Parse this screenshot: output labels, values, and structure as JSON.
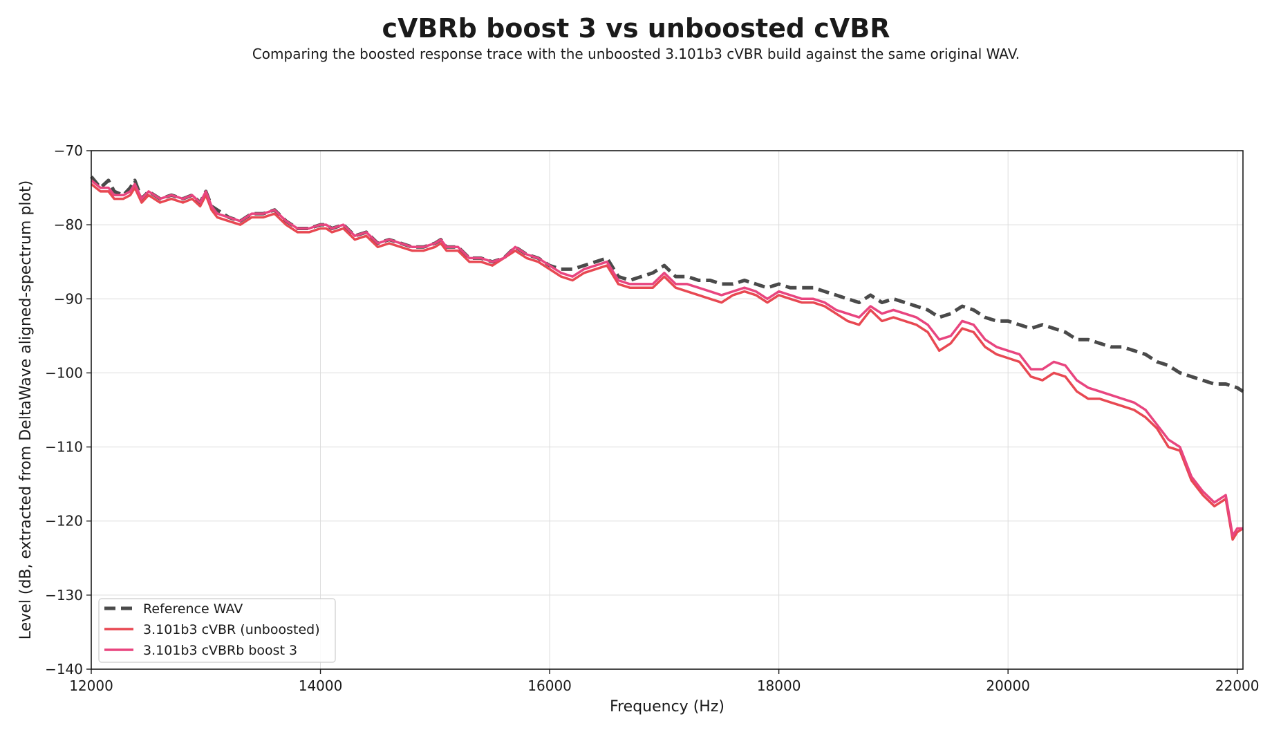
{
  "chart_data": {
    "type": "line",
    "title": "cVBRb boost 3 vs unboosted cVBR",
    "subtitle": "Comparing the boosted response trace with the unboosted 3.101b3 cVBR build against the same original WAV.",
    "xlabel": "Frequency (Hz)",
    "ylabel": "Level (dB, extracted from DeltaWave aligned-spectrum plot)",
    "xlim": [
      12000,
      22050
    ],
    "ylim": [
      -140,
      -70
    ],
    "x_ticks": [
      12000,
      14000,
      16000,
      18000,
      20000,
      22000
    ],
    "y_ticks": [
      -70,
      -80,
      -90,
      -100,
      -110,
      -120,
      -130,
      -140
    ],
    "x_tick_labels": [
      "12000",
      "14000",
      "16000",
      "18000",
      "20000",
      "22000"
    ],
    "y_tick_labels": [
      "−70",
      "−80",
      "−90",
      "−100",
      "−110",
      "−120",
      "−130",
      "−140"
    ],
    "grid": true,
    "legend_position": "lower-left",
    "series": [
      {
        "name": "Reference WAV",
        "color": "#4a4a4a",
        "style": "dashed",
        "x": [
          12000,
          12080,
          12150,
          12200,
          12280,
          12340,
          12380,
          12440,
          12500,
          12600,
          12700,
          12800,
          12880,
          12950,
          13000,
          13050,
          13100,
          13200,
          13300,
          13400,
          13500,
          13600,
          13700,
          13800,
          13900,
          14000,
          14050,
          14100,
          14200,
          14300,
          14400,
          14500,
          14600,
          14700,
          14800,
          14900,
          15000,
          15050,
          15100,
          15200,
          15300,
          15400,
          15500,
          15600,
          15700,
          15800,
          15900,
          16000,
          16100,
          16200,
          16300,
          16400,
          16500,
          16600,
          16700,
          16800,
          16900,
          17000,
          17100,
          17200,
          17300,
          17400,
          17500,
          17600,
          17700,
          17800,
          17900,
          18000,
          18100,
          18200,
          18300,
          18400,
          18500,
          18600,
          18700,
          18800,
          18900,
          19000,
          19100,
          19200,
          19300,
          19400,
          19500,
          19600,
          19700,
          19800,
          19900,
          20000,
          20100,
          20200,
          20300,
          20400,
          20500,
          20600,
          20700,
          20800,
          20900,
          21000,
          21100,
          21200,
          21300,
          21400,
          21500,
          21600,
          21700,
          21800,
          21900,
          22000,
          22050
        ],
        "values": [
          -73.5,
          -75.0,
          -74.0,
          -75.5,
          -76.0,
          -75.0,
          -74.0,
          -76.5,
          -75.5,
          -76.5,
          -76.0,
          -76.5,
          -76.0,
          -77.0,
          -75.5,
          -77.5,
          -78.0,
          -79.0,
          -79.5,
          -78.5,
          -78.5,
          -78.0,
          -79.5,
          -80.5,
          -80.5,
          -80.0,
          -80.0,
          -80.5,
          -80.0,
          -81.5,
          -81.0,
          -82.5,
          -82.0,
          -82.5,
          -83.0,
          -83.0,
          -82.5,
          -82.0,
          -83.0,
          -83.0,
          -84.5,
          -84.5,
          -85.0,
          -84.5,
          -83.0,
          -84.0,
          -84.5,
          -85.5,
          -86.0,
          -86.0,
          -85.5,
          -85.0,
          -84.5,
          -87.0,
          -87.5,
          -87.0,
          -86.5,
          -85.5,
          -87.0,
          -87.0,
          -87.5,
          -87.5,
          -88.0,
          -88.0,
          -87.5,
          -88.0,
          -88.5,
          -88.0,
          -88.5,
          -88.5,
          -88.5,
          -89.0,
          -89.5,
          -90.0,
          -90.5,
          -89.5,
          -90.5,
          -90.0,
          -90.5,
          -91.0,
          -91.5,
          -92.5,
          -92.0,
          -91.0,
          -91.5,
          -92.5,
          -93.0,
          -93.0,
          -93.5,
          -94.0,
          -93.5,
          -94.0,
          -94.5,
          -95.5,
          -95.5,
          -96.0,
          -96.5,
          -96.5,
          -97.0,
          -97.5,
          -98.5,
          -99.0,
          -100.0,
          -100.5,
          -101.0,
          -101.5,
          -101.5,
          -102.0,
          -102.5
        ]
      },
      {
        "name": "3.101b3 cVBR (unboosted)",
        "color": "#e84852",
        "style": "solid",
        "x": [
          12000,
          12080,
          12150,
          12200,
          12280,
          12340,
          12380,
          12440,
          12500,
          12600,
          12700,
          12800,
          12880,
          12950,
          13000,
          13050,
          13100,
          13200,
          13300,
          13400,
          13500,
          13600,
          13700,
          13800,
          13900,
          14000,
          14050,
          14100,
          14200,
          14300,
          14400,
          14500,
          14600,
          14700,
          14800,
          14900,
          15000,
          15050,
          15100,
          15200,
          15300,
          15400,
          15500,
          15600,
          15700,
          15800,
          15900,
          16000,
          16100,
          16200,
          16300,
          16400,
          16500,
          16600,
          16700,
          16800,
          16900,
          17000,
          17100,
          17200,
          17300,
          17400,
          17500,
          17600,
          17700,
          17800,
          17900,
          18000,
          18100,
          18200,
          18300,
          18400,
          18500,
          18600,
          18700,
          18800,
          18900,
          19000,
          19100,
          19200,
          19300,
          19400,
          19500,
          19600,
          19700,
          19800,
          19900,
          20000,
          20100,
          20200,
          20300,
          20400,
          20500,
          20600,
          20700,
          20800,
          20900,
          21000,
          21100,
          21200,
          21300,
          21400,
          21500,
          21600,
          21700,
          21800,
          21900,
          21960,
          22000,
          22050
        ],
        "values": [
          -74.5,
          -75.5,
          -75.5,
          -76.5,
          -76.5,
          -76.0,
          -75.0,
          -77.0,
          -76.0,
          -77.0,
          -76.5,
          -77.0,
          -76.5,
          -77.5,
          -76.0,
          -78.0,
          -79.0,
          -79.5,
          -80.0,
          -79.0,
          -79.0,
          -78.5,
          -80.0,
          -81.0,
          -81.0,
          -80.5,
          -80.5,
          -81.0,
          -80.5,
          -82.0,
          -81.5,
          -83.0,
          -82.5,
          -83.0,
          -83.5,
          -83.5,
          -83.0,
          -82.5,
          -83.5,
          -83.5,
          -85.0,
          -85.0,
          -85.5,
          -84.5,
          -83.5,
          -84.5,
          -85.0,
          -86.0,
          -87.0,
          -87.5,
          -86.5,
          -86.0,
          -85.5,
          -88.0,
          -88.5,
          -88.5,
          -88.5,
          -87.0,
          -88.5,
          -89.0,
          -89.5,
          -90.0,
          -90.5,
          -89.5,
          -89.0,
          -89.5,
          -90.5,
          -89.5,
          -90.0,
          -90.5,
          -90.5,
          -91.0,
          -92.0,
          -93.0,
          -93.5,
          -91.5,
          -93.0,
          -92.5,
          -93.0,
          -93.5,
          -94.5,
          -97.0,
          -96.0,
          -94.0,
          -94.5,
          -96.5,
          -97.5,
          -98.0,
          -98.5,
          -100.5,
          -101.0,
          -100.0,
          -100.5,
          -102.5,
          -103.5,
          -103.5,
          -104.0,
          -104.5,
          -105.0,
          -106.0,
          -107.5,
          -110.0,
          -110.5,
          -114.5,
          -116.5,
          -118.0,
          -117.0,
          -122.5,
          -121.5,
          -121.0
        ]
      },
      {
        "name": "3.101b3 cVBRb boost 3",
        "color": "#e8457f",
        "style": "solid",
        "x": [
          12000,
          12080,
          12150,
          12200,
          12280,
          12340,
          12380,
          12440,
          12500,
          12600,
          12700,
          12800,
          12880,
          12950,
          13000,
          13050,
          13100,
          13200,
          13300,
          13400,
          13500,
          13600,
          13700,
          13800,
          13900,
          14000,
          14050,
          14100,
          14200,
          14300,
          14400,
          14500,
          14600,
          14700,
          14800,
          14900,
          15000,
          15050,
          15100,
          15200,
          15300,
          15400,
          15500,
          15600,
          15700,
          15800,
          15900,
          16000,
          16100,
          16200,
          16300,
          16400,
          16500,
          16600,
          16700,
          16800,
          16900,
          17000,
          17100,
          17200,
          17300,
          17400,
          17500,
          17600,
          17700,
          17800,
          17900,
          18000,
          18100,
          18200,
          18300,
          18400,
          18500,
          18600,
          18700,
          18800,
          18900,
          19000,
          19100,
          19200,
          19300,
          19400,
          19500,
          19600,
          19700,
          19800,
          19900,
          20000,
          20100,
          20200,
          20300,
          20400,
          20500,
          20600,
          20700,
          20800,
          20900,
          21000,
          21100,
          21200,
          21300,
          21400,
          21500,
          21600,
          21700,
          21800,
          21900,
          21960,
          22000,
          22050
        ],
        "values": [
          -74.0,
          -75.0,
          -75.0,
          -76.0,
          -76.0,
          -75.5,
          -74.5,
          -76.5,
          -75.5,
          -76.5,
          -76.0,
          -76.5,
          -76.0,
          -77.0,
          -75.5,
          -77.5,
          -78.5,
          -79.0,
          -79.5,
          -78.5,
          -78.5,
          -78.0,
          -79.5,
          -80.5,
          -80.5,
          -80.0,
          -80.0,
          -80.5,
          -80.0,
          -81.5,
          -81.0,
          -82.5,
          -82.0,
          -82.5,
          -83.0,
          -83.0,
          -82.5,
          -82.0,
          -83.0,
          -83.0,
          -84.5,
          -84.5,
          -85.0,
          -84.5,
          -83.0,
          -84.0,
          -84.5,
          -85.5,
          -86.5,
          -87.0,
          -86.0,
          -85.5,
          -85.0,
          -87.5,
          -88.0,
          -88.0,
          -88.0,
          -86.5,
          -88.0,
          -88.0,
          -88.5,
          -89.0,
          -89.5,
          -89.0,
          -88.5,
          -89.0,
          -90.0,
          -89.0,
          -89.5,
          -90.0,
          -90.0,
          -90.5,
          -91.5,
          -92.0,
          -92.5,
          -91.0,
          -92.0,
          -91.5,
          -92.0,
          -92.5,
          -93.5,
          -95.5,
          -95.0,
          -93.0,
          -93.5,
          -95.5,
          -96.5,
          -97.0,
          -97.5,
          -99.5,
          -99.5,
          -98.5,
          -99.0,
          -101.0,
          -102.0,
          -102.5,
          -103.0,
          -103.5,
          -104.0,
          -105.0,
          -107.0,
          -109.0,
          -110.0,
          -114.0,
          -116.0,
          -117.5,
          -116.5,
          -122.0,
          -121.0,
          -121.0
        ]
      }
    ]
  }
}
